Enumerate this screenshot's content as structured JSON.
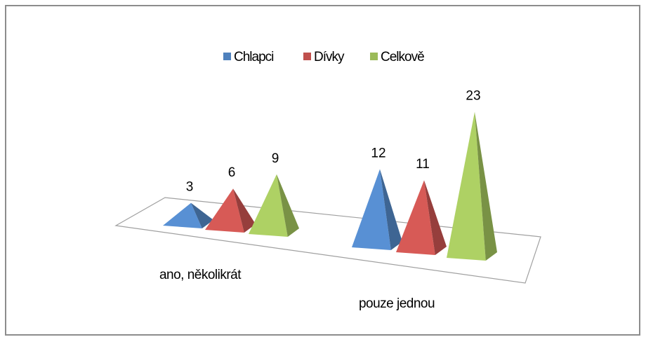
{
  "chart_data": {
    "type": "pyramid",
    "categories": [
      "ano, několikrát",
      "pouze jednou"
    ],
    "series": [
      {
        "name": "Chlapci",
        "color": "#4f81bd",
        "values": [
          3,
          12
        ]
      },
      {
        "name": "Dívky",
        "color": "#c0504d",
        "values": [
          6,
          11
        ]
      },
      {
        "name": "Celkově",
        "color": "#9bbb59",
        "values": [
          9,
          23
        ]
      }
    ],
    "legend": "top"
  }
}
